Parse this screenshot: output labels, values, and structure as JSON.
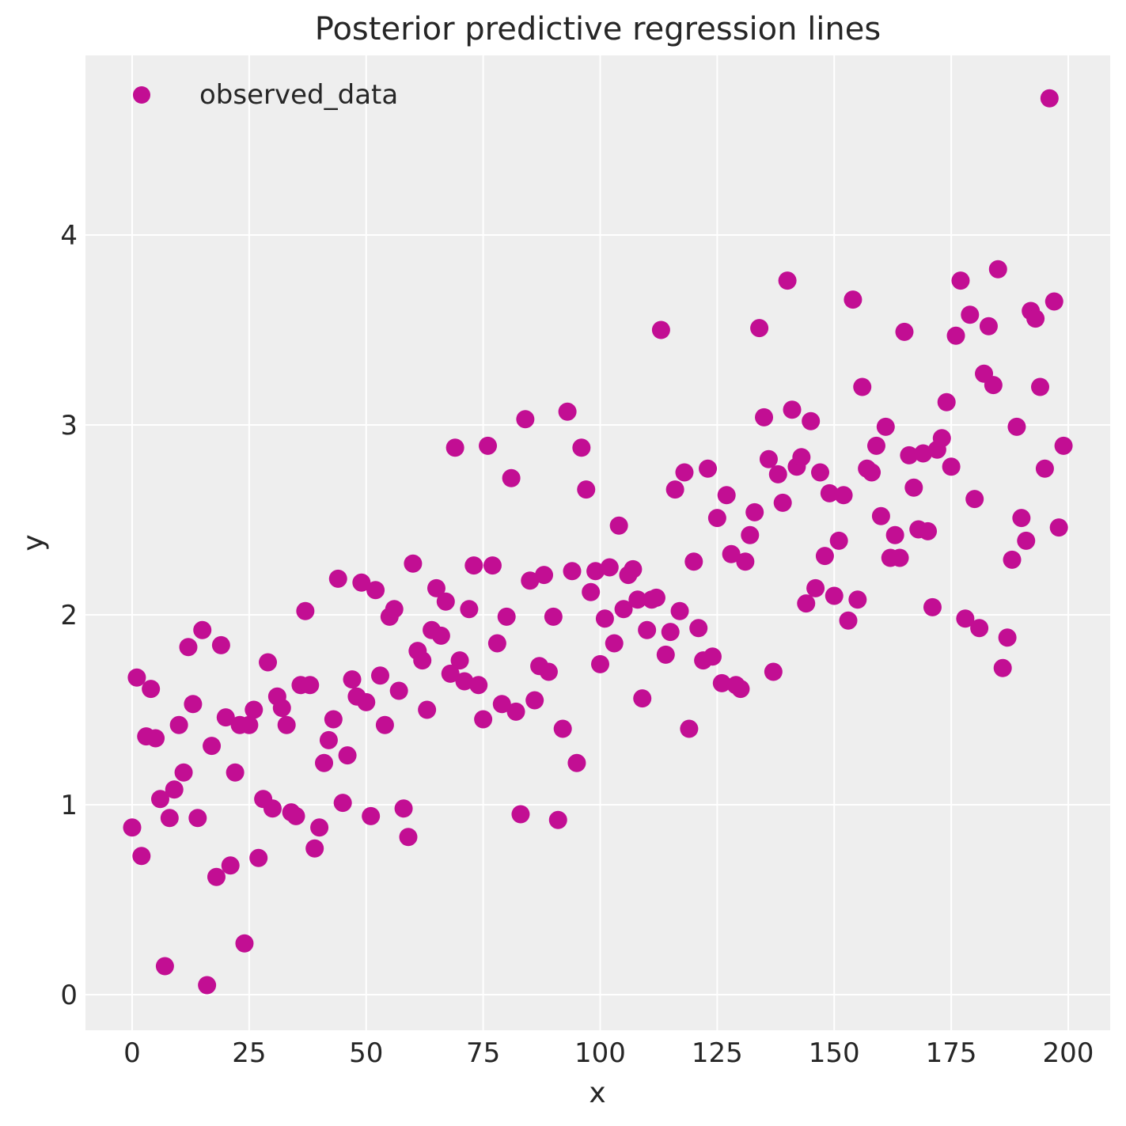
{
  "chart_data": {
    "type": "scatter",
    "title": "Posterior predictive regression lines",
    "xlabel": "x",
    "ylabel": "y",
    "xlim": [
      -10,
      209
    ],
    "ylim": [
      -0.19,
      4.96
    ],
    "xticks": [
      0,
      25,
      50,
      75,
      100,
      125,
      150,
      175,
      200
    ],
    "yticks": [
      0,
      1,
      2,
      3,
      4
    ],
    "grid": true,
    "legend": {
      "position": "upper left",
      "entries": [
        "observed_data"
      ]
    },
    "series": [
      {
        "name": "observed_data",
        "color": "#c20e93",
        "marker": "o",
        "x": [
          0,
          1,
          2,
          3,
          4,
          5,
          6,
          7,
          8,
          9,
          10,
          11,
          12,
          13,
          14,
          15,
          16,
          17,
          18,
          19,
          20,
          21,
          22,
          23,
          24,
          25,
          26,
          27,
          28,
          29,
          30,
          31,
          32,
          33,
          34,
          35,
          36,
          37,
          38,
          39,
          40,
          41,
          42,
          43,
          44,
          45,
          46,
          47,
          48,
          49,
          50,
          51,
          52,
          53,
          54,
          55,
          56,
          57,
          58,
          59,
          60,
          61,
          62,
          63,
          64,
          65,
          66,
          67,
          68,
          69,
          70,
          71,
          72,
          73,
          74,
          75,
          76,
          77,
          78,
          79,
          80,
          81,
          82,
          83,
          84,
          85,
          86,
          87,
          88,
          89,
          90,
          91,
          92,
          93,
          94,
          95,
          96,
          97,
          98,
          99,
          100,
          101,
          102,
          103,
          104,
          105,
          106,
          107,
          108,
          109,
          110,
          111,
          112,
          113,
          114,
          115,
          116,
          117,
          118,
          119,
          120,
          121,
          122,
          123,
          124,
          125,
          126,
          127,
          128,
          129,
          130,
          131,
          132,
          133,
          134,
          135,
          136,
          137,
          138,
          139,
          140,
          141,
          142,
          143,
          144,
          145,
          146,
          147,
          148,
          149,
          150,
          151,
          152,
          153,
          154,
          155,
          156,
          157,
          158,
          159,
          160,
          161,
          162,
          163,
          164,
          165,
          166,
          167,
          168,
          169,
          170,
          171,
          172,
          173,
          174,
          175,
          176,
          177,
          178,
          179,
          180,
          181,
          182,
          183,
          184,
          185,
          186,
          187,
          188,
          189,
          190,
          191,
          192,
          193,
          194,
          195,
          196,
          197,
          198,
          199
        ],
        "y": [
          0.88,
          1.67,
          0.73,
          1.36,
          1.61,
          1.35,
          1.03,
          0.15,
          0.93,
          1.08,
          1.42,
          1.17,
          1.83,
          1.53,
          0.93,
          1.92,
          0.05,
          1.31,
          0.62,
          1.84,
          1.46,
          0.68,
          1.17,
          1.42,
          0.27,
          1.42,
          1.5,
          0.72,
          1.03,
          1.75,
          0.98,
          1.57,
          1.51,
          1.42,
          0.96,
          0.94,
          1.63,
          2.02,
          1.63,
          0.77,
          0.88,
          1.22,
          1.34,
          1.45,
          2.19,
          1.01,
          1.26,
          1.66,
          1.57,
          2.17,
          1.54,
          0.94,
          2.13,
          1.68,
          1.42,
          1.99,
          2.03,
          1.6,
          0.98,
          0.83,
          2.27,
          1.81,
          1.76,
          1.5,
          1.92,
          2.14,
          1.89,
          2.07,
          1.69,
          2.88,
          1.76,
          1.65,
          2.03,
          2.26,
          1.63,
          1.45,
          2.89,
          2.26,
          1.85,
          1.53,
          1.99,
          2.72,
          1.49,
          0.95,
          3.03,
          2.18,
          1.55,
          1.73,
          2.21,
          1.7,
          1.99,
          0.92,
          1.4,
          3.07,
          2.23,
          1.22,
          2.88,
          2.66,
          2.12,
          2.23,
          1.74,
          1.98,
          2.25,
          1.85,
          2.47,
          2.03,
          2.21,
          2.24,
          2.08,
          1.56,
          1.92,
          2.08,
          2.09,
          3.5,
          1.79,
          1.91,
          2.66,
          2.02,
          2.75,
          1.4,
          2.28,
          1.93,
          1.76,
          2.77,
          1.78,
          2.51,
          1.64,
          2.63,
          2.32,
          1.63,
          1.61,
          2.28,
          2.42,
          2.54,
          3.51,
          3.04,
          2.82,
          1.7,
          2.74,
          2.59,
          3.76,
          3.08,
          2.78,
          2.83,
          2.06,
          3.02,
          2.14,
          2.75,
          2.31,
          2.64,
          2.1,
          2.39,
          2.63,
          1.97,
          3.66,
          2.08,
          3.2,
          2.77,
          2.75,
          2.89,
          2.52,
          2.99,
          2.3,
          2.42,
          2.3,
          3.49,
          2.84,
          2.67,
          2.45,
          2.85,
          2.44,
          2.04,
          2.87,
          2.93,
          3.12,
          2.78,
          3.47,
          3.76,
          1.98,
          3.58,
          2.61,
          1.93,
          3.27,
          3.52,
          3.21,
          3.82,
          1.72,
          1.88,
          2.29,
          2.99,
          2.51,
          2.39,
          3.6,
          3.56,
          3.2,
          2.77,
          4.72,
          3.65,
          2.46,
          2.89
        ]
      }
    ]
  },
  "title": "Posterior predictive regression lines",
  "legend_label": "observed_data"
}
